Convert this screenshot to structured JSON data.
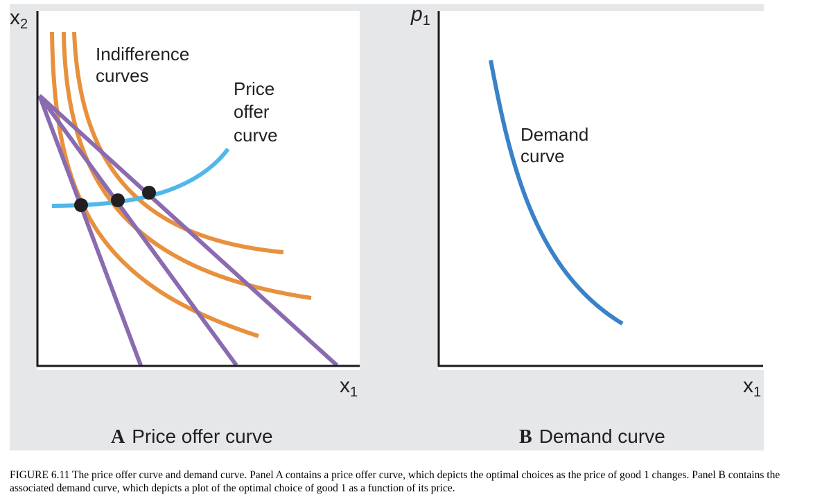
{
  "panel_a": {
    "y_axis_label": "x",
    "y_axis_sub": "2",
    "x_axis_label": "x",
    "x_axis_sub": "1",
    "indifference_label_line1": "Indifference",
    "indifference_label_line2": "curves",
    "poc_label_line1": "Price",
    "poc_label_line2": "offer",
    "poc_label_line3": "curve",
    "title_letter": "A",
    "title_text": "Price offer curve"
  },
  "panel_b": {
    "y_axis_label": "p",
    "y_axis_sub": "1",
    "x_axis_label": "x",
    "x_axis_sub": "1",
    "demand_label_line1": "Demand",
    "demand_label_line2": "curve",
    "title_letter": "B",
    "title_text": "Demand curve"
  },
  "caption": "FIGURE 6.11 The price offer curve and demand curve. Panel A contains a price offer curve, which depicts the optimal choices as the price of good 1 changes. Panel B contains the associated demand curve, which depicts a plot of the optimal choice of good 1 as a function of its price.",
  "colors": {
    "indifference": "#e8913d",
    "budget": "#8a6bb0",
    "price_offer": "#4fb8e8",
    "demand": "#3a82c8",
    "axis": "#1a1a1a",
    "background": "#e6e7e9"
  }
}
